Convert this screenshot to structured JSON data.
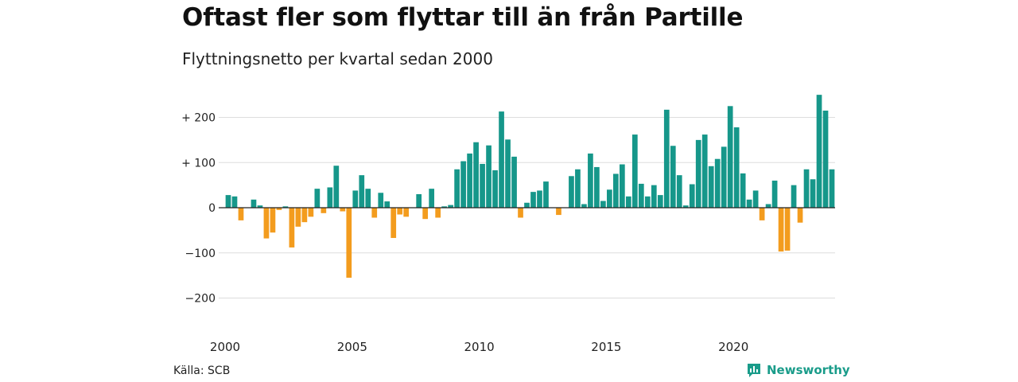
{
  "header": {
    "title": "Oftast fler som flyttar till än från Partille",
    "subtitle": "Flyttningsnetto per kvartal sedan 2000"
  },
  "footer": {
    "source": "Källa: SCB",
    "brand": "Newsworthy"
  },
  "colors": {
    "positive": "#16978a",
    "negative": "#f39c1e",
    "grid": "#dddddd",
    "zero_line": "#222222"
  },
  "icons": {
    "brand": "newsworthy-logo-icon"
  },
  "chart_data": {
    "type": "bar",
    "title": "Oftast fler som flyttar till än från Partille",
    "subtitle": "Flyttningsnetto per kvartal sedan 2000",
    "xlabel": "",
    "ylabel": "",
    "ylim": [
      -250,
      260
    ],
    "yticks": [
      200,
      100,
      0,
      -100,
      -200
    ],
    "ytick_labels": [
      "+ 200",
      "+ 100",
      "0",
      "−100",
      "−200"
    ],
    "xticks": [
      2000,
      2005,
      2010,
      2015,
      2020
    ],
    "xtick_labels": [
      "2000",
      "2005",
      "2010",
      "2015",
      "2020"
    ],
    "grid": true,
    "legend": "none",
    "start_year": 2000,
    "start_quarter": 1,
    "values": [
      28,
      25,
      -28,
      0,
      18,
      5,
      -68,
      -55,
      -5,
      3,
      -88,
      -42,
      -32,
      -20,
      42,
      -12,
      45,
      93,
      -8,
      -155,
      38,
      72,
      42,
      -22,
      33,
      14,
      -67,
      -15,
      -20,
      0,
      30,
      -25,
      42,
      -22,
      3,
      6,
      85,
      103,
      120,
      145,
      97,
      138,
      83,
      213,
      151,
      113,
      -22,
      11,
      35,
      38,
      58,
      0,
      -16,
      0,
      70,
      85,
      8,
      120,
      90,
      15,
      40,
      75,
      96,
      25,
      162,
      53,
      25,
      50,
      28,
      217,
      137,
      72,
      5,
      52,
      150,
      162,
      92,
      108,
      135,
      225,
      178,
      76,
      18,
      38,
      -28,
      8,
      60,
      -97,
      -95,
      50,
      -33,
      85,
      63,
      250,
      215,
      85
    ]
  }
}
